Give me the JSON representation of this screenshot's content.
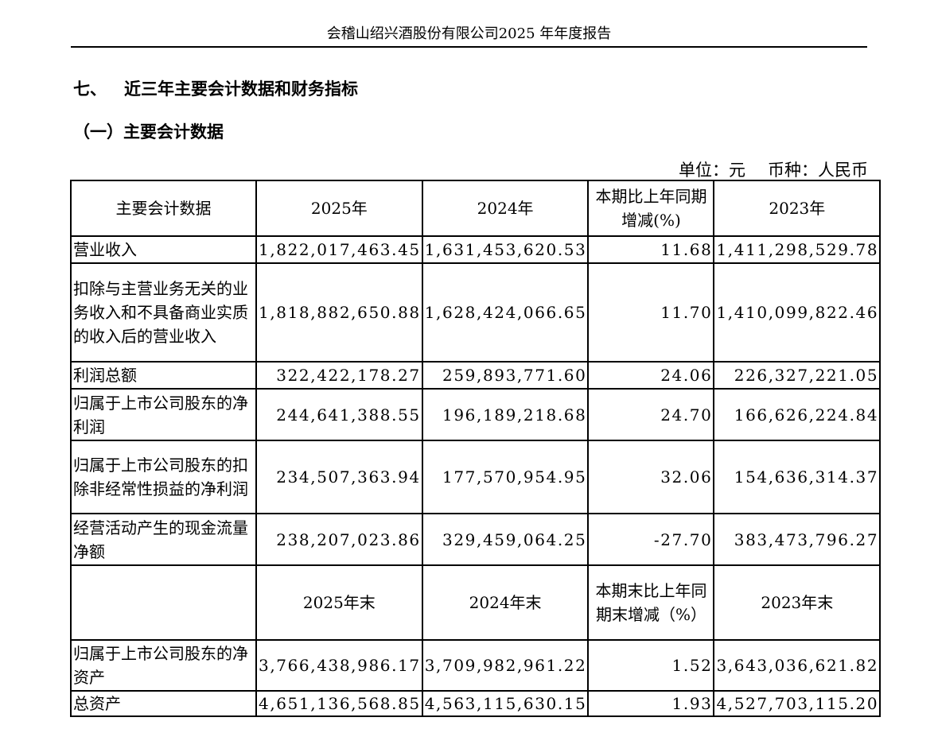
{
  "header": "会稽山绍兴酒股份有限公司2025 年年度报告",
  "section": {
    "number": "七、",
    "title": "近三年主要会计数据和财务指标"
  },
  "subsection": "（一）主要会计数据",
  "unit": {
    "unit": "单位：元",
    "currency": "币种：人民币"
  },
  "table": {
    "header1": [
      "主要会计数据",
      "2025年",
      "2024年",
      "本期比上年同期增减(%)",
      "2023年"
    ],
    "rows1": [
      [
        "营业收入",
        "1,822,017,463.45",
        "1,631,453,620.53",
        "11.68",
        "1,411,298,529.78"
      ],
      [
        "扣除与主营业务无关的业务收入和不具备商业实质的收入后的营业收入",
        "1,818,882,650.88",
        "1,628,424,066.65",
        "11.70",
        "1,410,099,822.46"
      ],
      [
        "利润总额",
        "322,422,178.27",
        "259,893,771.60",
        "24.06",
        "226,327,221.05"
      ],
      [
        "归属于上市公司股东的净利润",
        "244,641,388.55",
        "196,189,218.68",
        "24.70",
        "166,626,224.84"
      ],
      [
        "归属于上市公司股东的扣除非经常性损益的净利润",
        "234,507,363.94",
        "177,570,954.95",
        "32.06",
        "154,636,314.37"
      ],
      [
        "经营活动产生的现金流量净额",
        "238,207,023.86",
        "329,459,064.25",
        "-27.70",
        "383,473,796.27"
      ]
    ],
    "header2": [
      "",
      "2025年末",
      "2024年末",
      "本期末比上年同期末增减（%）",
      "2023年末"
    ],
    "rows2": [
      [
        "归属于上市公司股东的净资产",
        "3,766,438,986.17",
        "3,709,982,961.22",
        "1.52",
        "3,643,036,621.82"
      ],
      [
        "总资产",
        "4,651,136,568.85",
        "4,563,115,630.15",
        "1.93",
        "4,527,703,115.20"
      ]
    ]
  }
}
